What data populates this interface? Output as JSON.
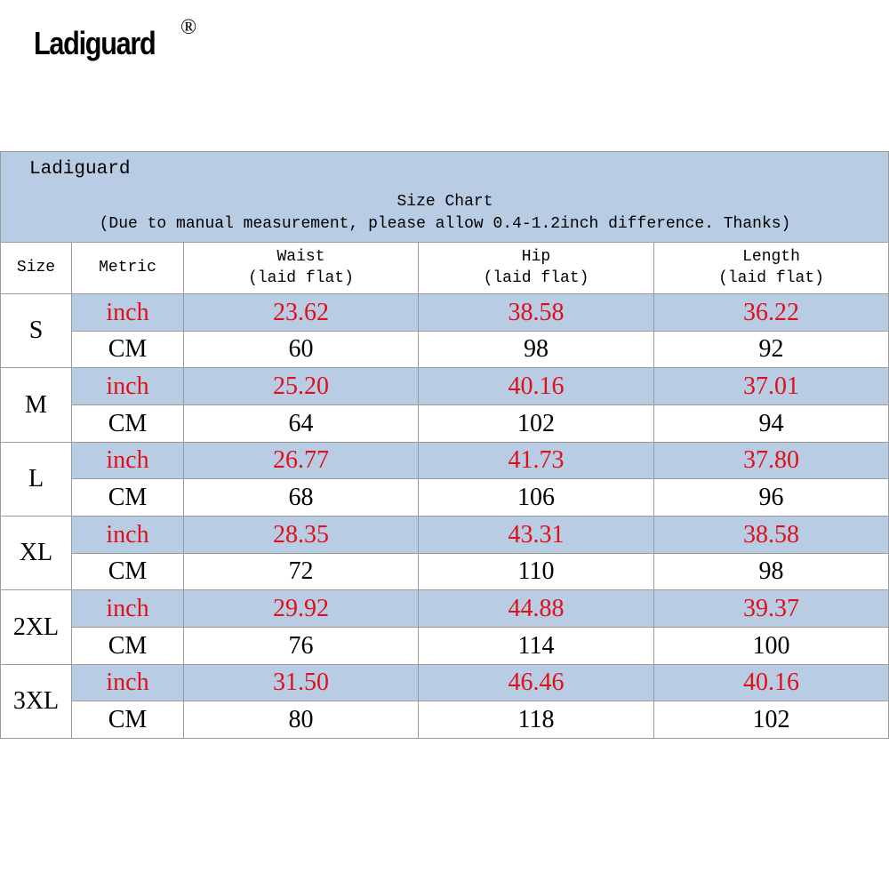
{
  "logo": {
    "name": "Ladiguard",
    "mark": "®"
  },
  "table": {
    "brand": "Ladiguard",
    "title": "Size Chart",
    "note": "(Due to manual measurement, please allow 0.4-1.2inch difference. Thanks)",
    "columns": [
      {
        "name": "Size"
      },
      {
        "name": "Metric"
      },
      {
        "name": "Waist",
        "sub": "(laid flat)"
      },
      {
        "name": "Hip",
        "sub": "(laid flat)"
      },
      {
        "name": "Length",
        "sub": "(laid flat)"
      }
    ],
    "sizes": [
      {
        "size": "S",
        "rows": [
          {
            "metric": "inch",
            "values": [
              "23.62",
              "38.58",
              "36.22"
            ]
          },
          {
            "metric": "CM",
            "values": [
              "60",
              "98",
              "92"
            ]
          }
        ]
      },
      {
        "size": "M",
        "rows": [
          {
            "metric": "inch",
            "values": [
              "25.20",
              "40.16",
              "37.01"
            ]
          },
          {
            "metric": "CM",
            "values": [
              "64",
              "102",
              "94"
            ]
          }
        ]
      },
      {
        "size": "L",
        "rows": [
          {
            "metric": "inch",
            "values": [
              "26.77",
              "41.73",
              "37.80"
            ]
          },
          {
            "metric": "CM",
            "values": [
              "68",
              "106",
              "96"
            ]
          }
        ]
      },
      {
        "size": "XL",
        "rows": [
          {
            "metric": "inch",
            "values": [
              "28.35",
              "43.31",
              "38.58"
            ]
          },
          {
            "metric": "CM",
            "values": [
              "72",
              "110",
              "98"
            ]
          }
        ]
      },
      {
        "size": "2XL",
        "rows": [
          {
            "metric": "inch",
            "values": [
              "29.92",
              "44.88",
              "39.37"
            ]
          },
          {
            "metric": "CM",
            "values": [
              "76",
              "114",
              "100"
            ]
          }
        ]
      },
      {
        "size": "3XL",
        "rows": [
          {
            "metric": "inch",
            "values": [
              "31.50",
              "46.46",
              "40.16"
            ]
          },
          {
            "metric": "CM",
            "values": [
              "80",
              "118",
              "102"
            ]
          }
        ]
      }
    ]
  }
}
